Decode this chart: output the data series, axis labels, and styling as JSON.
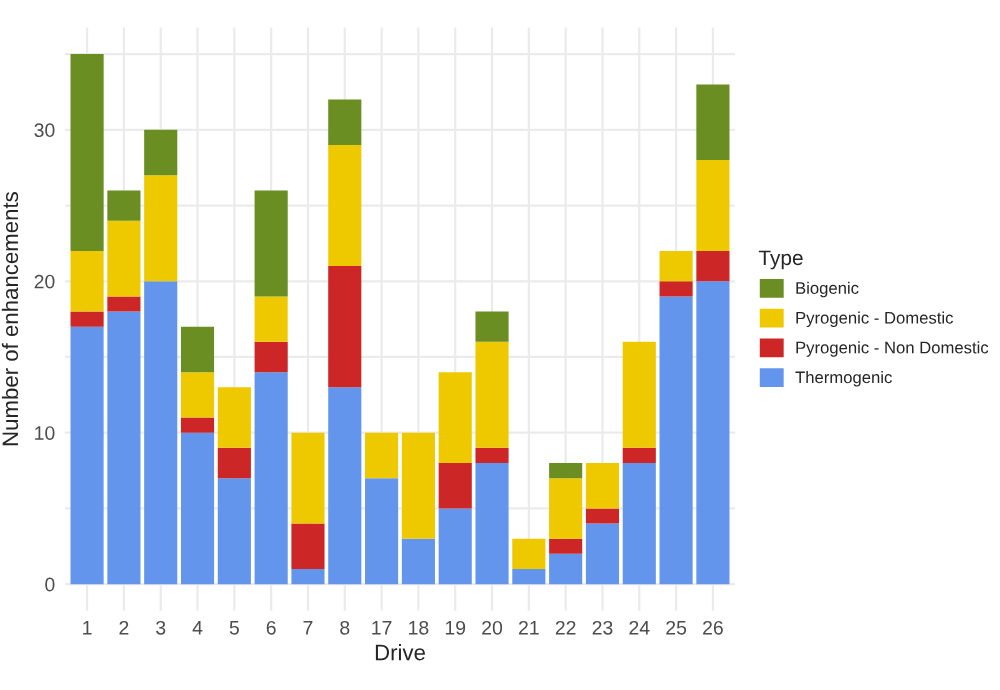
{
  "chart_data": {
    "type": "bar",
    "stacked": true,
    "xlabel": "Drive",
    "ylabel": "Number of enhancements",
    "legend_title": "Type",
    "legend": "right",
    "grid": true,
    "categories": [
      "1",
      "2",
      "3",
      "4",
      "5",
      "6",
      "7",
      "8",
      "17",
      "18",
      "19",
      "20",
      "21",
      "22",
      "23",
      "24",
      "25",
      "26"
    ],
    "series": [
      {
        "name": "Thermogenic",
        "color": "#6495ed",
        "values": [
          17,
          18,
          20,
          10,
          7,
          14,
          1,
          13,
          7,
          3,
          5,
          8,
          1,
          2,
          4,
          8,
          19,
          20
        ]
      },
      {
        "name": "Pyrogenic - Non Domestic",
        "color": "#cd2626",
        "values": [
          1,
          1,
          0,
          1,
          2,
          2,
          3,
          8,
          0,
          0,
          3,
          1,
          0,
          1,
          1,
          1,
          1,
          2
        ]
      },
      {
        "name": "Pyrogenic - Domestic",
        "color": "#eec900",
        "values": [
          4,
          5,
          7,
          3,
          4,
          3,
          6,
          8,
          3,
          7,
          6,
          7,
          2,
          4,
          3,
          7,
          2,
          6
        ]
      },
      {
        "name": "Biogenic",
        "color": "#6b8e23",
        "values": [
          13,
          2,
          3,
          3,
          0,
          7,
          0,
          3,
          0,
          0,
          0,
          2,
          0,
          1,
          0,
          0,
          0,
          5
        ]
      }
    ],
    "ylim": [
      -1.75,
      36.75
    ],
    "yticks": [
      0,
      {
        "value": 5,
        "label": null
      },
      10,
      {
        "value": 15,
        "label": null
      },
      20,
      {
        "value": 25,
        "label": null
      },
      30,
      {
        "value": 35,
        "label": null
      }
    ]
  }
}
